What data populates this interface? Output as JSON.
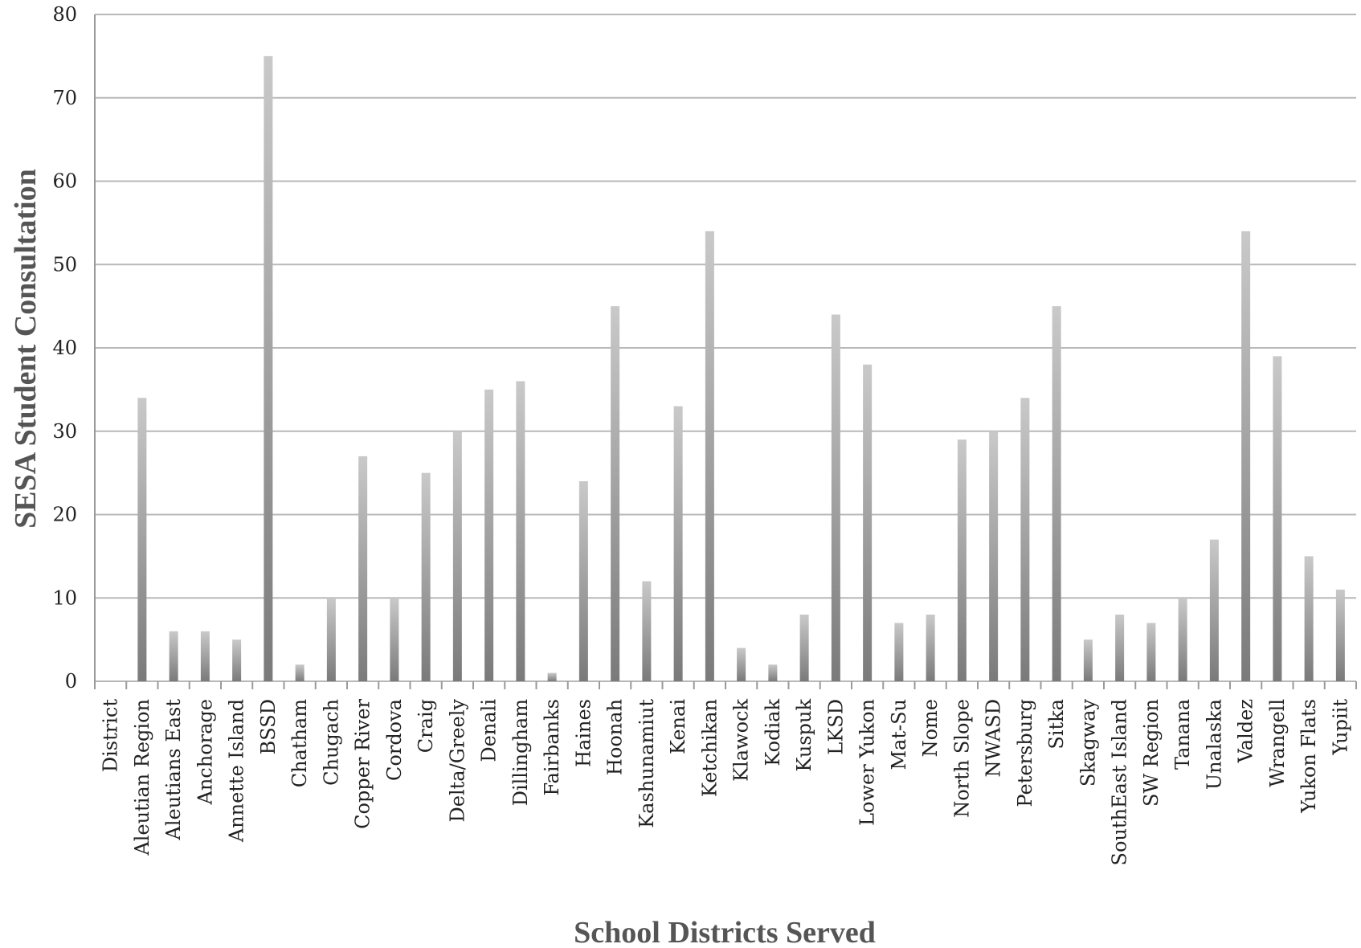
{
  "colors": {
    "bar_top": "#c9c9c9",
    "bar_bottom": "#7a7a7a",
    "grid": "#b8b8b8",
    "text": "#222222",
    "axis_title": "#555555"
  },
  "chart_data": {
    "type": "bar",
    "title": "",
    "xlabel": "School Districts Served",
    "ylabel": "SESA Student  Consultation",
    "ylim": [
      0,
      80
    ],
    "yticks": [
      0,
      10,
      20,
      30,
      40,
      50,
      60,
      70,
      80
    ],
    "grid": true,
    "categories": [
      "District",
      "Aleutian Region",
      "Aleutians East",
      "Anchorage",
      "Annette Island",
      "BSSD",
      "Chatham",
      "Chugach",
      "Copper River",
      "Cordova",
      "Craig",
      "Delta/Greely",
      "Denali",
      "Dillingham",
      "Fairbanks",
      "Haines",
      "Hoonah",
      "Kashunamiut",
      "Kenai",
      "Ketchikan",
      "Klawock",
      "Kodiak",
      "Kuspuk",
      "LKSD",
      "Lower Yukon",
      "Mat-Su",
      "Nome",
      "North Slope",
      "NWASD",
      "Petersburg",
      "Sitka",
      "Skagway",
      "SouthEast Island",
      "SW Region",
      "Tanana",
      "Unalaska",
      "Valdez",
      "Wrangell",
      "Yukon Flats",
      "Yupiit"
    ],
    "values": [
      0,
      34,
      6,
      6,
      5,
      75,
      2,
      10,
      27,
      10,
      25,
      30,
      35,
      36,
      1,
      24,
      45,
      12,
      33,
      54,
      4,
      2,
      8,
      44,
      38,
      7,
      8,
      29,
      30,
      34,
      45,
      5,
      8,
      7,
      10,
      17,
      54,
      39,
      15,
      11
    ]
  }
}
